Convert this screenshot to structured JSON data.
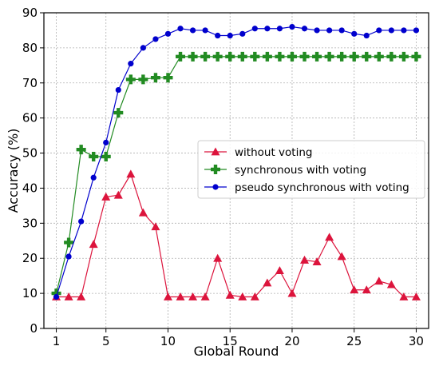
{
  "chart_data": {
    "type": "line",
    "xlabel": "Global Round",
    "ylabel": "Accuracy (%)",
    "xlim": [
      0,
      31
    ],
    "ylim": [
      0,
      90
    ],
    "xticks": [
      1,
      5,
      10,
      15,
      20,
      25,
      30
    ],
    "yticks": [
      0,
      10,
      20,
      30,
      40,
      50,
      60,
      70,
      80,
      90
    ],
    "grid": true,
    "legend_position": "center-right",
    "x": [
      1,
      2,
      3,
      4,
      5,
      6,
      7,
      8,
      9,
      10,
      11,
      12,
      13,
      14,
      15,
      16,
      17,
      18,
      19,
      20,
      21,
      22,
      23,
      24,
      25,
      26,
      27,
      28,
      29,
      30
    ],
    "series": [
      {
        "name": "without voting",
        "color": "#dc143c",
        "marker": "triangle",
        "values": [
          9,
          9,
          9,
          24,
          37.5,
          38,
          44,
          33,
          29,
          9,
          9,
          9,
          9,
          20,
          9.5,
          9,
          9,
          13,
          16.5,
          10,
          19.5,
          19,
          26,
          20.5,
          11,
          11,
          13.5,
          12.5,
          9,
          9
        ]
      },
      {
        "name": "synchronous with voting",
        "color": "#228b22",
        "marker": "plus",
        "values": [
          10,
          24.5,
          51,
          49,
          49,
          61.5,
          71,
          71,
          71.5,
          71.5,
          77.5,
          77.5,
          77.5,
          77.5,
          77.5,
          77.5,
          77.5,
          77.5,
          77.5,
          77.5,
          77.5,
          77.5,
          77.5,
          77.5,
          77.5,
          77.5,
          77.5,
          77.5,
          77.5,
          77.5
        ]
      },
      {
        "name": "pseudo synchronous with voting",
        "color": "#0000cd",
        "marker": "circle",
        "values": [
          9,
          20.5,
          30.5,
          43,
          53,
          68,
          75.5,
          80,
          82.5,
          84,
          85.5,
          85,
          85,
          83.5,
          83.5,
          84,
          85.5,
          85.5,
          85.5,
          86,
          85.5,
          85,
          85,
          85,
          84,
          83.5,
          85,
          85,
          85,
          85
        ]
      }
    ]
  }
}
